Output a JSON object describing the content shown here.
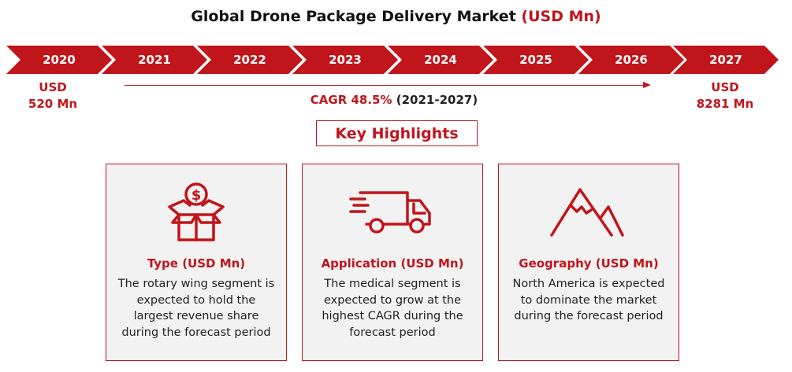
{
  "title": {
    "main": "Global Drone Package Delivery Market",
    "unit": "(USD Mn)"
  },
  "timeline": {
    "years": [
      "2020",
      "2021",
      "2022",
      "2023",
      "2024",
      "2025",
      "2026",
      "2027"
    ]
  },
  "start_value": {
    "line1": "USD",
    "line2": "520 Mn"
  },
  "end_value": {
    "line1": "USD",
    "line2": "8281 Mn"
  },
  "cagr": {
    "label": "CAGR 48.5%",
    "period": "(2021-2027)"
  },
  "key_highlights": "Key Highlights",
  "cards": [
    {
      "icon": "money-box-icon",
      "title": "Type (USD Mn)",
      "text": "The rotary wing segment is expected to hold the largest revenue share during the forecast period"
    },
    {
      "icon": "delivery-truck-icon",
      "title": "Application (USD Mn)",
      "text": "The medical segment is expected to grow at the highest CAGR during the forecast period"
    },
    {
      "icon": "mountain-icon",
      "title": "Geography (USD Mn)",
      "text": "North America is expected to dominate the market during the forecast period"
    }
  ],
  "colors": {
    "accent": "#c0151b",
    "card_bg": "#f3f2f2"
  }
}
